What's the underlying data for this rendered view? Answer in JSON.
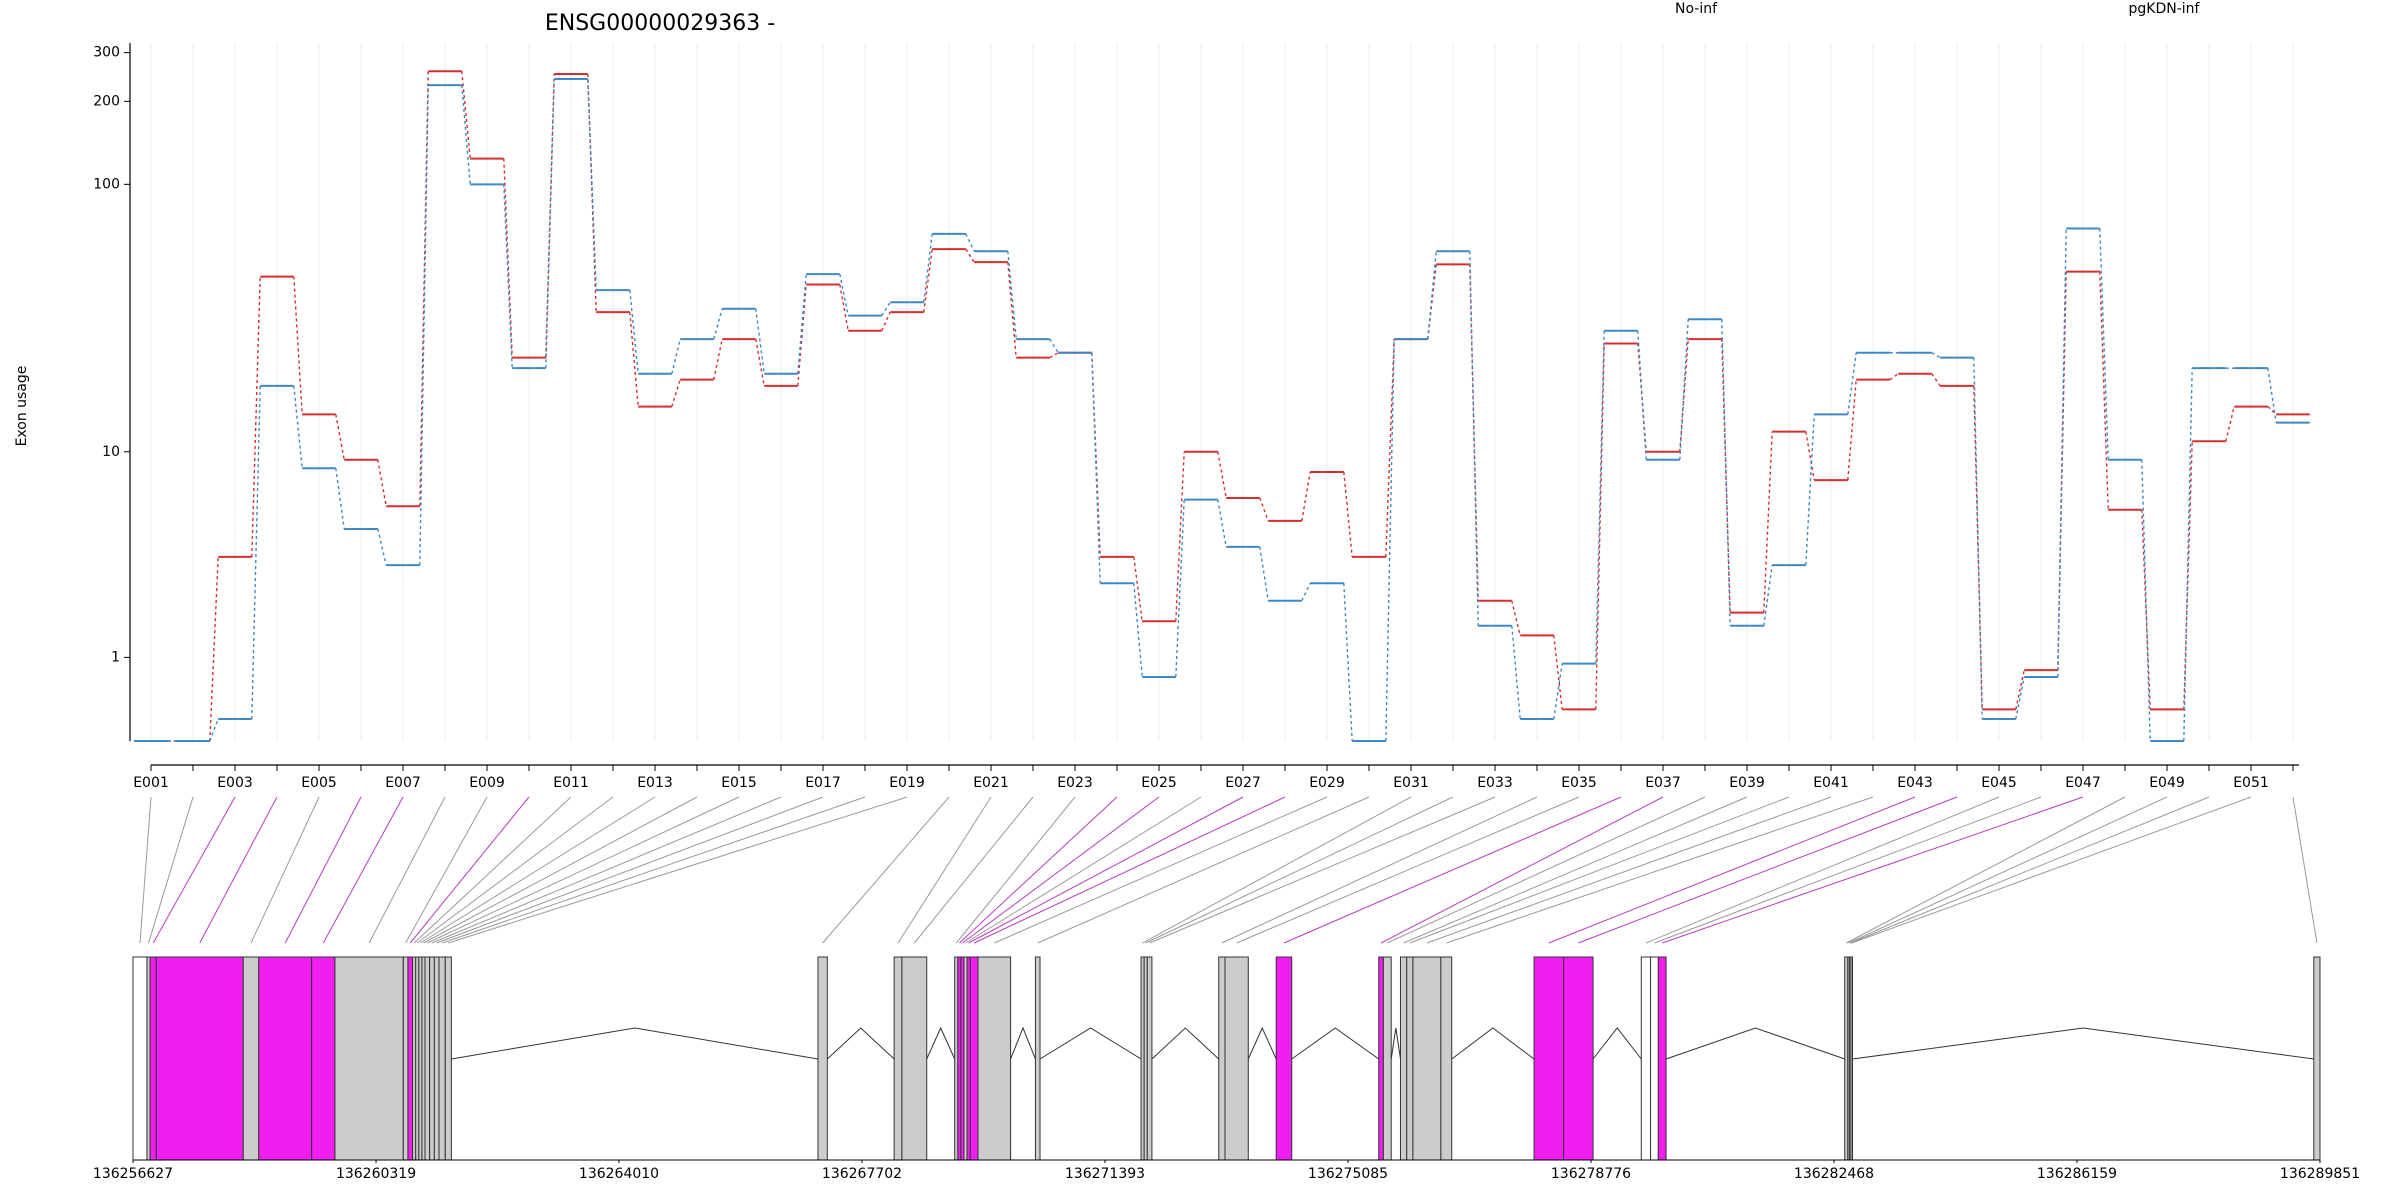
{
  "chart_data": [
    {
      "type": "step",
      "title": "ENSG00000029363 -",
      "ylabel": "Exon usage",
      "yscale": "log1p",
      "ylim": [
        0,
        325
      ],
      "yticks": [
        1,
        10,
        100,
        200,
        300
      ],
      "grid": true,
      "categories": [
        "E001",
        null,
        "E003",
        null,
        "E005",
        null,
        "E007",
        null,
        "E009",
        null,
        "E011",
        null,
        "E013",
        null,
        "E015",
        null,
        "E017",
        null,
        "E019",
        null,
        "E021",
        null,
        "E023",
        null,
        "E025",
        null,
        "E027",
        null,
        "E029",
        null,
        "E031",
        null,
        "E033",
        null,
        "E035",
        null,
        "E037",
        null,
        "E039",
        null,
        "E041",
        null,
        "E043",
        null,
        "E045",
        null,
        "E047",
        null,
        "E049",
        null,
        "E051",
        null
      ],
      "series": [
        {
          "name": "No-inf",
          "color": "#d62f2f",
          "values": [
            0,
            0,
            3.6,
            46,
            14,
            9.3,
            6.0,
            257,
            124,
            23,
            251,
            34,
            15,
            19,
            27,
            18,
            43,
            29,
            34,
            58,
            52,
            23,
            24,
            3.6,
            1.7,
            10,
            6.5,
            5.2,
            8.3,
            3.6,
            27,
            51,
            2.2,
            1.4,
            0.3,
            26,
            10,
            27,
            1.9,
            12,
            7.7,
            19,
            20,
            18,
            0.3,
            0.8,
            48,
            5.8,
            0.3,
            11,
            15,
            14
          ]
        },
        {
          "name": "pgKDN-inf",
          "color": "#3f88c5",
          "values": [
            0,
            0,
            0.2,
            18,
            8.6,
            4.8,
            3.3,
            229,
            100,
            21,
            241,
            41,
            20,
            27,
            35,
            20,
            47,
            33,
            37,
            66,
            57,
            27,
            24,
            2.7,
            0.7,
            6.4,
            4.0,
            2.2,
            2.7,
            0,
            27,
            57,
            1.6,
            0.2,
            0.9,
            29,
            9.3,
            32,
            1.6,
            3.3,
            14,
            24,
            24,
            23,
            0.2,
            0.7,
            69,
            9.3,
            0,
            21,
            21,
            13
          ]
        }
      ]
    },
    {
      "type": "gene-model",
      "xlim": [
        136256627,
        136289851
      ],
      "xticks": [
        136256627,
        136260319,
        136264010,
        136267702,
        136271393,
        136275085,
        136278776,
        136282468,
        136286159,
        136289851
      ],
      "starts": [
        136256627,
        136256839,
        136256887,
        136256981,
        136258302,
        136258538,
        136259341,
        136259695,
        136260733,
        136260804,
        136260874,
        136260922,
        136260969,
        136261016,
        136261063,
        136261134,
        136261205,
        136261276,
        136261370,
        136267033,
        136268190,
        136268308,
        136269110,
        136269158,
        136269204,
        136269251,
        136269298,
        136269346,
        136269464,
        136270336,
        136271941,
        136271988,
        136272036,
        136273121,
        136273216,
        136273994,
        136275552,
        136275622,
        136275882,
        136275977,
        136276071,
        136276496,
        136277911,
        136278360,
        136279540,
        136279681,
        136279799,
        136282631,
        136282678,
        136282702,
        136282725,
        136289757
      ],
      "ends": [
        136256839,
        136256887,
        136256981,
        136258302,
        136258538,
        136259341,
        136259695,
        136260733,
        136260804,
        136260874,
        136260922,
        136260969,
        136261016,
        136261063,
        136261134,
        136261205,
        136261276,
        136261370,
        136261464,
        136267175,
        136268308,
        136268685,
        136269158,
        136269204,
        136269251,
        136269298,
        136269346,
        136269464,
        136269959,
        136270406,
        136271988,
        136272036,
        136272106,
        136273216,
        136273570,
        136274230,
        136275622,
        136275741,
        136275977,
        136276071,
        136276496,
        136276661,
        136278360,
        136278808,
        136279681,
        136279799,
        136279917,
        136282678,
        136282702,
        136282725,
        136282749,
        136289851
      ],
      "colors": [
        "#ffffff",
        "#cccccc",
        "#f01ef0",
        "#f01ef0",
        "#cccccc",
        "#f01ef0",
        "#f01ef0",
        "#cccccc",
        "#cccccc",
        "#f01ef0",
        "#cccccc",
        "#cccccc",
        "#cccccc",
        "#cccccc",
        "#cccccc",
        "#cccccc",
        "#cccccc",
        "#cccccc",
        "#cccccc",
        "#cccccc",
        "#cccccc",
        "#cccccc",
        "#cccccc",
        "#f01ef0",
        "#f01ef0",
        "#cccccc",
        "#f01ef0",
        "#f01ef0",
        "#cccccc",
        "#cccccc",
        "#cccccc",
        "#cccccc",
        "#cccccc",
        "#cccccc",
        "#cccccc",
        "#f01ef0",
        "#f01ef0",
        "#cccccc",
        "#cccccc",
        "#cccccc",
        "#cccccc",
        "#cccccc",
        "#f01ef0",
        "#f01ef0",
        "#ffffff",
        "#ffffff",
        "#f01ef0",
        "#cccccc",
        "#cccccc",
        "#cccccc",
        "#cccccc",
        "#cccccc"
      ]
    }
  ]
}
